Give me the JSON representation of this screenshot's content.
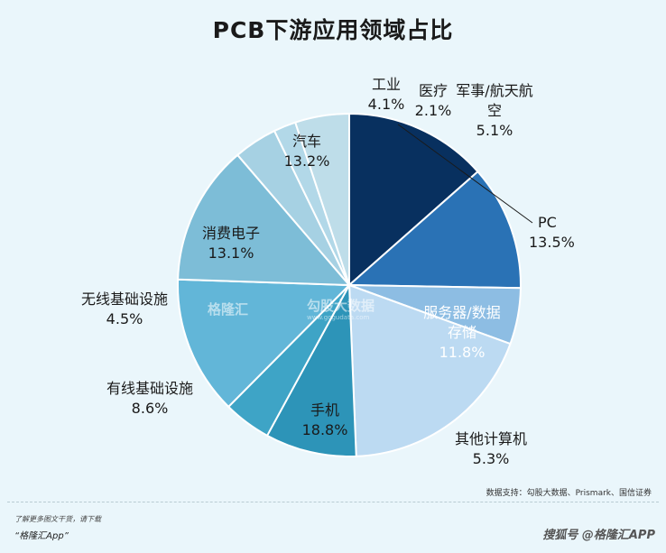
{
  "chart_data": {
    "type": "pie",
    "title": "PCB下游应用领域占比",
    "slices": [
      {
        "label": "PC",
        "value": 13.5,
        "color": "#08305f"
      },
      {
        "label": "服务器/数据存储",
        "value": 11.8,
        "color": "#2a72b5"
      },
      {
        "label": "其他计算机",
        "value": 5.3,
        "color": "#8dbde3"
      },
      {
        "label": "手机",
        "value": 18.8,
        "color": "#bcdaf2"
      },
      {
        "label": "有线基础设施",
        "value": 8.6,
        "color": "#2d94b8"
      },
      {
        "label": "无线基础设施",
        "value": 4.5,
        "color": "#3ea4c6"
      },
      {
        "label": "消费电子",
        "value": 13.1,
        "color": "#62b6d8"
      },
      {
        "label": "汽车",
        "value": 13.2,
        "color": "#7dbdd7"
      },
      {
        "label": "工业",
        "value": 4.1,
        "color": "#a6d1e3"
      },
      {
        "label": "医疗",
        "value": 2.1,
        "color": "#b2d8e8"
      },
      {
        "label": "军事/航天航空",
        "value": 5.1,
        "color": "#bedde9"
      }
    ],
    "value_suffix": "%",
    "legend": "none"
  },
  "source": "数据支持：勾股大数据、Prismark、国信证券",
  "watermark": {
    "brand": "格隆汇",
    "brand2": "勾股大数据",
    "url": "www.gogudata.com"
  },
  "footer": {
    "line1": "了解更多图文干货，请下载",
    "line2": "“格隆汇App”",
    "brand": "格隆汇",
    "tag": "搜狐号 @格隆汇APP"
  },
  "colors": {
    "background": "#eaf6fb",
    "slice_border": "#ffffff"
  }
}
